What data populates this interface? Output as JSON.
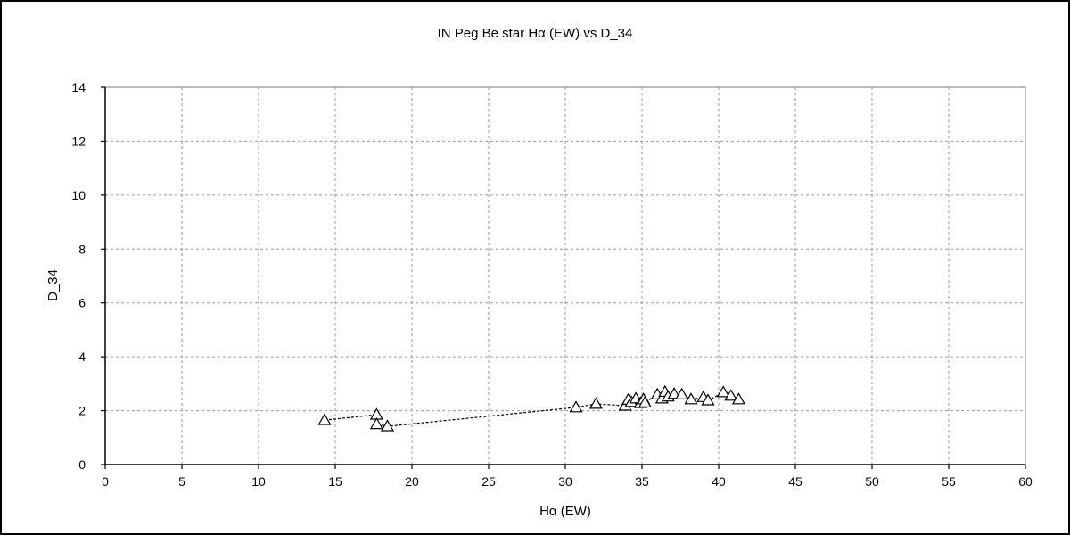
{
  "chart_data": {
    "type": "scatter",
    "title": "IN Peg     Be star     Hα (EW) vs D_34",
    "xlabel": "Hα (EW)",
    "ylabel": "D_34",
    "xlim": [
      0,
      60
    ],
    "ylim": [
      0,
      14
    ],
    "xticks": [
      0,
      5,
      10,
      15,
      20,
      25,
      30,
      35,
      40,
      45,
      50,
      55,
      60
    ],
    "yticks": [
      0,
      2,
      4,
      6,
      8,
      10,
      12,
      14
    ],
    "grid": true,
    "legend": "none",
    "marker": "open-triangle",
    "connected": true,
    "line_style": "dashed",
    "series": [
      {
        "points": [
          {
            "x": 14.3,
            "y": 1.65
          },
          {
            "x": 17.7,
            "y": 1.85
          },
          {
            "x": 17.7,
            "y": 1.5
          },
          {
            "x": 18.4,
            "y": 1.42
          },
          {
            "x": 30.7,
            "y": 2.12
          },
          {
            "x": 32.0,
            "y": 2.25
          },
          {
            "x": 33.9,
            "y": 2.18
          },
          {
            "x": 34.1,
            "y": 2.4
          },
          {
            "x": 34.3,
            "y": 2.32
          },
          {
            "x": 34.6,
            "y": 2.45
          },
          {
            "x": 34.9,
            "y": 2.28
          },
          {
            "x": 35.1,
            "y": 2.42
          },
          {
            "x": 35.2,
            "y": 2.3
          },
          {
            "x": 36.0,
            "y": 2.6
          },
          {
            "x": 36.3,
            "y": 2.45
          },
          {
            "x": 36.5,
            "y": 2.7
          },
          {
            "x": 36.7,
            "y": 2.52
          },
          {
            "x": 37.1,
            "y": 2.62
          },
          {
            "x": 37.6,
            "y": 2.6
          },
          {
            "x": 38.2,
            "y": 2.42
          },
          {
            "x": 39.0,
            "y": 2.5
          },
          {
            "x": 39.3,
            "y": 2.38
          },
          {
            "x": 40.3,
            "y": 2.68
          },
          {
            "x": 40.8,
            "y": 2.55
          },
          {
            "x": 41.3,
            "y": 2.42
          }
        ]
      }
    ]
  }
}
